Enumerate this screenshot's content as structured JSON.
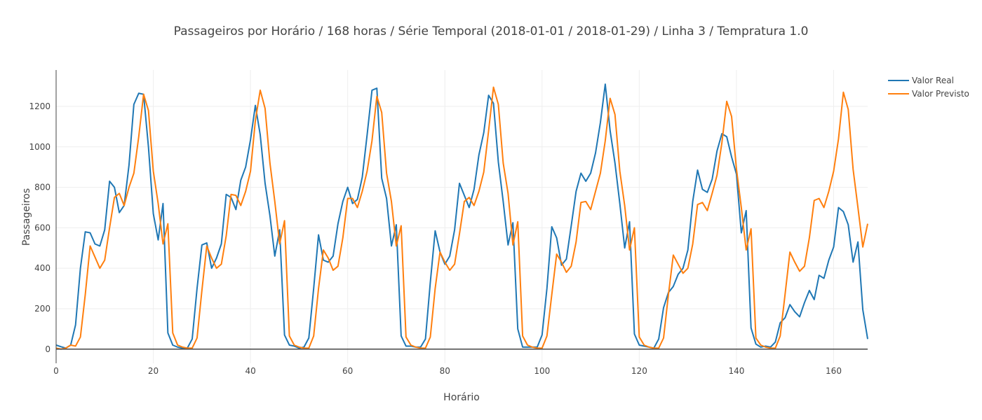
{
  "chart_data": {
    "type": "line",
    "title": "Passageiros por Horário / 168 horas / Série Temporal (2018-01-01 / 2018-01-29) / Linha 3 / Tempratura 1.0",
    "xlabel": "Horário",
    "ylabel": "Passageiros",
    "xlim": [
      0,
      167
    ],
    "ylim": [
      -70,
      1380
    ],
    "x_ticks": [
      0,
      20,
      40,
      60,
      80,
      100,
      120,
      140,
      160
    ],
    "y_ticks": [
      0,
      200,
      400,
      600,
      800,
      1000,
      1200
    ],
    "grid": true,
    "legend_position": "top-right",
    "x": [
      0,
      1,
      2,
      3,
      4,
      5,
      6,
      7,
      8,
      9,
      10,
      11,
      12,
      13,
      14,
      15,
      16,
      17,
      18,
      19,
      20,
      21,
      22,
      23,
      24,
      25,
      26,
      27,
      28,
      29,
      30,
      31,
      32,
      33,
      34,
      35,
      36,
      37,
      38,
      39,
      40,
      41,
      42,
      43,
      44,
      45,
      46,
      47,
      48,
      49,
      50,
      51,
      52,
      53,
      54,
      55,
      56,
      57,
      58,
      59,
      60,
      61,
      62,
      63,
      64,
      65,
      66,
      67,
      68,
      69,
      70,
      71,
      72,
      73,
      74,
      75,
      76,
      77,
      78,
      79,
      80,
      81,
      82,
      83,
      84,
      85,
      86,
      87,
      88,
      89,
      90,
      91,
      92,
      93,
      94,
      95,
      96,
      97,
      98,
      99,
      100,
      101,
      102,
      103,
      104,
      105,
      106,
      107,
      108,
      109,
      110,
      111,
      112,
      113,
      114,
      115,
      116,
      117,
      118,
      119,
      120,
      121,
      122,
      123,
      124,
      125,
      126,
      127,
      128,
      129,
      130,
      131,
      132,
      133,
      134,
      135,
      136,
      137,
      138,
      139,
      140,
      141,
      142,
      143,
      144,
      145,
      146,
      147,
      148,
      149,
      150,
      151,
      152,
      153,
      154,
      155,
      156,
      157,
      158,
      159,
      160,
      161,
      162,
      163,
      164,
      165,
      166,
      167
    ],
    "series": [
      {
        "name": "Valor Real",
        "color": "#1f77b4",
        "values": [
          20,
          12,
          5,
          20,
          120,
          400,
          580,
          575,
          520,
          510,
          590,
          830,
          800,
          675,
          710,
          910,
          1210,
          1265,
          1260,
          1000,
          670,
          540,
          720,
          80,
          20,
          10,
          5,
          5,
          50,
          300,
          515,
          525,
          400,
          450,
          520,
          765,
          750,
          690,
          835,
          900,
          1035,
          1205,
          1060,
          820,
          660,
          460,
          590,
          70,
          20,
          15,
          5,
          10,
          55,
          300,
          565,
          440,
          430,
          460,
          620,
          730,
          800,
          720,
          740,
          850,
          1060,
          1280,
          1290,
          845,
          745,
          510,
          615,
          65,
          15,
          15,
          10,
          10,
          50,
          330,
          585,
          480,
          420,
          460,
          590,
          820,
          760,
          700,
          790,
          960,
          1070,
          1255,
          1215,
          925,
          730,
          515,
          625,
          100,
          10,
          10,
          10,
          10,
          70,
          300,
          605,
          550,
          415,
          445,
          610,
          780,
          870,
          830,
          870,
          970,
          1120,
          1310,
          1080,
          920,
          720,
          500,
          630,
          75,
          20,
          15,
          10,
          5,
          50,
          205,
          280,
          310,
          370,
          400,
          490,
          730,
          885,
          790,
          775,
          840,
          980,
          1065,
          1050,
          950,
          865,
          575,
          685,
          105,
          25,
          10,
          15,
          10,
          35,
          130,
          155,
          220,
          185,
          160,
          230,
          290,
          245,
          365,
          350,
          440,
          505,
          700,
          680,
          615,
          430,
          530,
          195,
          50
        ]
      },
      {
        "name": "Valor Previsto",
        "color": "#ff7f0e",
        "values": [
          5,
          0,
          5,
          20,
          15,
          60,
          270,
          510,
          455,
          400,
          440,
          600,
          750,
          770,
          710,
          800,
          870,
          1050,
          1260,
          1180,
          880,
          720,
          520,
          620,
          80,
          20,
          10,
          5,
          5,
          55,
          290,
          510,
          450,
          400,
          420,
          560,
          765,
          760,
          710,
          780,
          880,
          1130,
          1280,
          1190,
          920,
          730,
          520,
          635,
          65,
          20,
          10,
          5,
          5,
          65,
          300,
          490,
          450,
          390,
          410,
          550,
          745,
          745,
          700,
          780,
          880,
          1030,
          1250,
          1170,
          870,
          730,
          510,
          610,
          60,
          20,
          10,
          5,
          5,
          60,
          300,
          480,
          430,
          390,
          420,
          570,
          730,
          750,
          710,
          780,
          875,
          1080,
          1295,
          1210,
          920,
          770,
          515,
          630,
          65,
          20,
          10,
          5,
          5,
          65,
          270,
          470,
          430,
          380,
          410,
          530,
          725,
          730,
          690,
          780,
          870,
          1030,
          1240,
          1160,
          880,
          710,
          490,
          600,
          60,
          20,
          10,
          5,
          5,
          55,
          270,
          465,
          420,
          375,
          400,
          520,
          715,
          725,
          685,
          770,
          860,
          1020,
          1225,
          1150,
          890,
          700,
          490,
          595,
          55,
          20,
          10,
          5,
          5,
          65,
          270,
          480,
          430,
          385,
          410,
          550,
          735,
          745,
          700,
          780,
          880,
          1040,
          1270,
          1185,
          890,
          700,
          505,
          620
        ]
      }
    ]
  }
}
